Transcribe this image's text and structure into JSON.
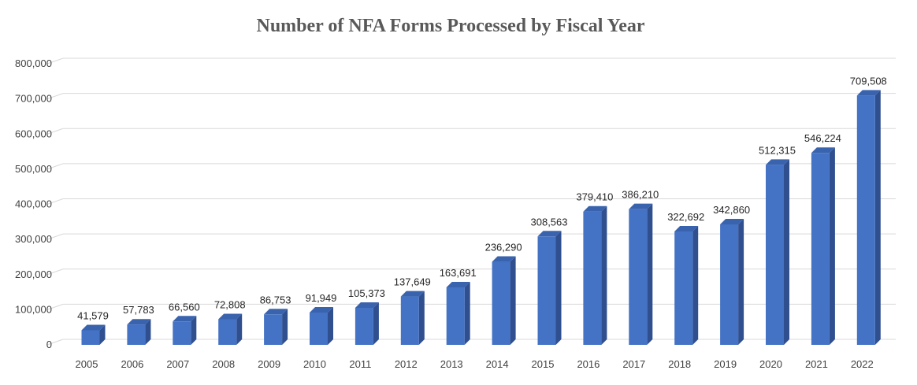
{
  "colors": {
    "bar_front": "#4472C4",
    "bar_side": "#2F4F8F",
    "bar_top": "#3A63AE",
    "gridline": "#D9D9D9",
    "title": "#595959"
  },
  "chart_data": {
    "type": "bar",
    "title": "Number of NFA Forms Processed by Fiscal Year",
    "xlabel": "",
    "ylabel": "",
    "ylim": [
      0,
      800000
    ],
    "yticks": [
      0,
      100000,
      200000,
      300000,
      400000,
      500000,
      600000,
      700000,
      800000
    ],
    "ytick_labels": [
      "0",
      "100,000",
      "200,000",
      "300,000",
      "400,000",
      "500,000",
      "600,000",
      "700,000",
      "800,000"
    ],
    "grid": true,
    "categories": [
      "2005",
      "2006",
      "2007",
      "2008",
      "2009",
      "2010",
      "2011",
      "2012",
      "2013",
      "2014",
      "2015",
      "2016",
      "2017",
      "2018",
      "2019",
      "2020",
      "2021",
      "2022"
    ],
    "values": [
      41579,
      57783,
      66560,
      72808,
      86753,
      91949,
      105373,
      137649,
      163691,
      236290,
      308563,
      379410,
      386210,
      322692,
      342860,
      512315,
      546224,
      709508
    ],
    "value_labels": [
      "41,579",
      "57,783",
      "66,560",
      "72,808",
      "86,753",
      "91,949",
      "105,373",
      "137,649",
      "163,691",
      "236,290",
      "308,563",
      "379,410",
      "386,210",
      "322,692",
      "342,860",
      "512,315",
      "546,224",
      "709,508"
    ]
  }
}
